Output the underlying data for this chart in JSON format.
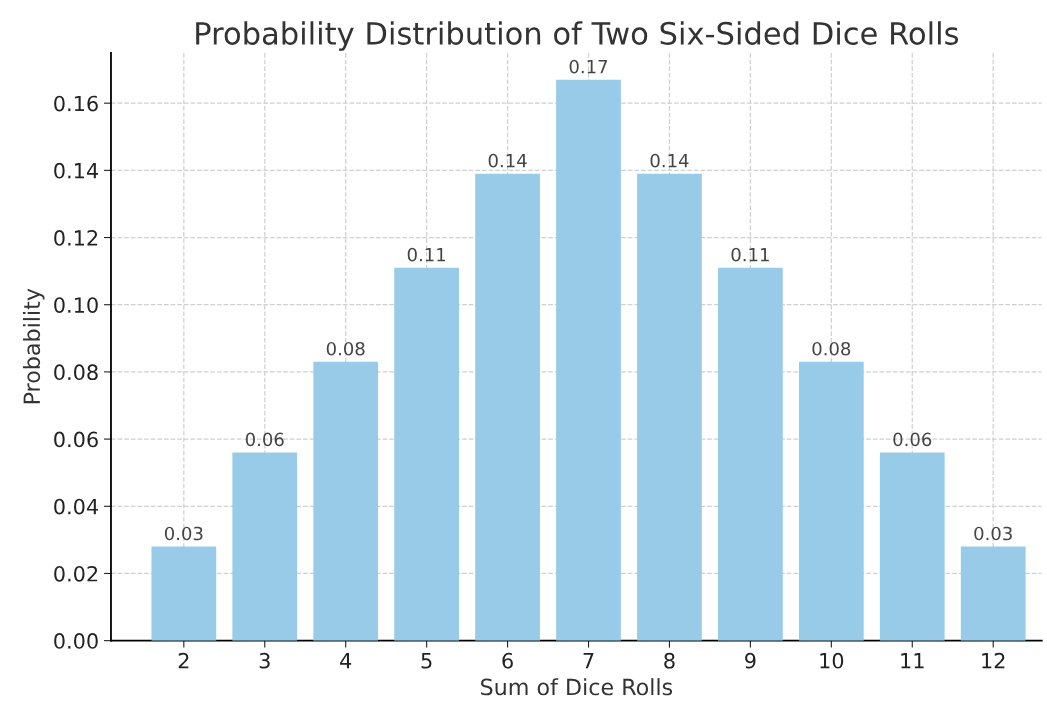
{
  "chart_data": {
    "type": "bar",
    "title": "Probability Distribution of Two Six-Sided Dice Rolls",
    "xlabel": "Sum of Dice Rolls",
    "ylabel": "Probability",
    "categories": [
      "2",
      "3",
      "4",
      "5",
      "6",
      "7",
      "8",
      "9",
      "10",
      "11",
      "12"
    ],
    "values": [
      0.028,
      0.056,
      0.083,
      0.111,
      0.139,
      0.167,
      0.139,
      0.111,
      0.083,
      0.056,
      0.028
    ],
    "value_labels": [
      "0.03",
      "0.06",
      "0.08",
      "0.11",
      "0.14",
      "0.17",
      "0.14",
      "0.11",
      "0.08",
      "0.06",
      "0.03"
    ],
    "color": "#97cbe7",
    "ylim": [
      0,
      0.175
    ],
    "yticks": [
      {
        "value": 0,
        "label": "0.00"
      },
      {
        "value": 0.02,
        "label": "0.02"
      },
      {
        "value": 0.04,
        "label": "0.04"
      },
      {
        "value": 0.06,
        "label": "0.06"
      },
      {
        "value": 0.08,
        "label": "0.08"
      },
      {
        "value": 0.1,
        "label": "0.10"
      },
      {
        "value": 0.12,
        "label": "0.12"
      },
      {
        "value": 0.14,
        "label": "0.14"
      },
      {
        "value": 0.16,
        "label": "0.16"
      }
    ],
    "grid": true
  }
}
